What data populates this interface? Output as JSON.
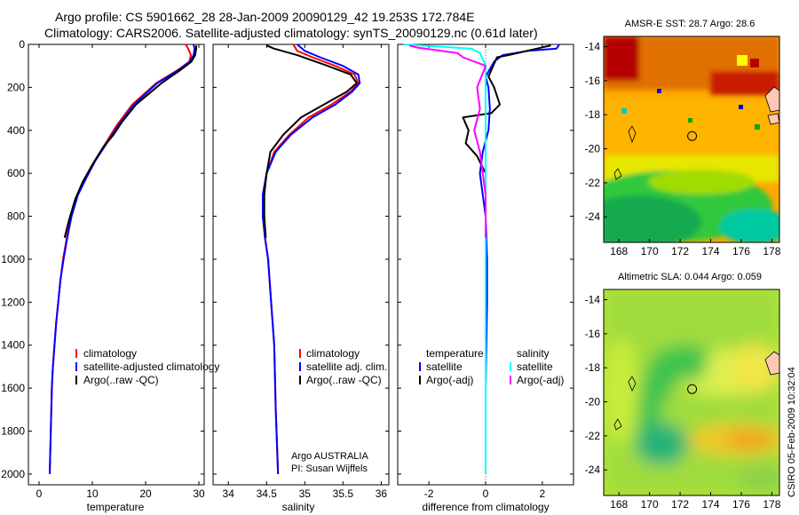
{
  "title": {
    "line1": "Argo profile: CS 5901662_28 28-Jan-2009 20090129_42 19.253S 172.784E",
    "line2": "Climatology: CARS2006. Satellite-adjusted climatology: synTS_20090129.nc (0.61d later)"
  },
  "stamp": "CSIRO 05-Feb-2009 10:32:04",
  "float_info": {
    "line1": "Argo AUSTRALIA",
    "line2": "PI: Susan Wijffels"
  },
  "colors": {
    "clim": "#ff0000",
    "sat": "#0000ff",
    "argo": "#000000",
    "sal_sat": "#00ffff",
    "sal_argo": "#ff00ff"
  },
  "chart_data": [
    {
      "type": "line",
      "name": "temperature-profile",
      "xlabel": "temperature",
      "xlim": [
        -2,
        31
      ],
      "ylim": [
        2050,
        0
      ],
      "xticks": [
        0,
        10,
        20,
        30
      ],
      "yticks": [
        0,
        200,
        400,
        600,
        800,
        1000,
        1200,
        1400,
        1600,
        1800,
        2000
      ],
      "legend": {
        "position": "bottom-right",
        "entries": [
          "climatology",
          "satellite-adjusted climatology",
          "Argo(..raw -QC)"
        ]
      },
      "series": [
        {
          "name": "climatology",
          "color": "#ff0000",
          "x": [
            27.5,
            28.0,
            28.5,
            28.2,
            26.0,
            22.0,
            17.5,
            14.5,
            12.5,
            10.5,
            8.8,
            7.2,
            6.0,
            5.2,
            4.5,
            4.0,
            3.6,
            3.2,
            2.9,
            2.6,
            2.4,
            2.2,
            2.0
          ],
          "y": [
            0,
            20,
            50,
            80,
            120,
            180,
            280,
            380,
            460,
            540,
            620,
            700,
            800,
            900,
            1000,
            1100,
            1200,
            1300,
            1400,
            1500,
            1600,
            1800,
            2000
          ]
        },
        {
          "name": "satellite-adjusted climatology",
          "color": "#0000ff",
          "x": [
            29.0,
            29.2,
            29.0,
            28.3,
            26.2,
            22.2,
            17.8,
            14.8,
            12.7,
            10.6,
            8.9,
            7.3,
            6.1,
            5.3,
            4.6,
            4.0,
            3.6,
            3.2,
            2.9,
            2.6,
            2.4,
            2.2,
            2.0
          ],
          "y": [
            0,
            20,
            50,
            80,
            120,
            180,
            280,
            380,
            460,
            540,
            620,
            700,
            800,
            900,
            1000,
            1100,
            1200,
            1300,
            1400,
            1500,
            1600,
            1800,
            2000
          ]
        },
        {
          "name": "Argo(..raw -QC)",
          "color": "#000000",
          "x": [
            29.5,
            29.5,
            29.3,
            28.6,
            26.5,
            23.0,
            18.2,
            15.6,
            14.0,
            12.0,
            10.0,
            8.2,
            6.8,
            5.6,
            4.8
          ],
          "y": [
            5,
            20,
            50,
            80,
            120,
            180,
            280,
            360,
            420,
            480,
            560,
            640,
            720,
            820,
            900
          ]
        }
      ]
    },
    {
      "type": "line",
      "name": "salinity-profile",
      "xlabel": "salinity",
      "xlim": [
        33.8,
        36.1
      ],
      "ylim": [
        2050,
        0
      ],
      "xticks": [
        34,
        34.5,
        35,
        35.5,
        36
      ],
      "legend": {
        "position": "bottom-right",
        "entries": [
          "climatology",
          "satellite adj. clim.",
          "Argo(..raw -QC)"
        ]
      },
      "series": [
        {
          "name": "climatology",
          "color": "#ff0000",
          "x": [
            34.85,
            34.9,
            35.1,
            35.4,
            35.65,
            35.7,
            35.6,
            35.35,
            35.05,
            34.8,
            34.6,
            34.5,
            34.45,
            34.45,
            34.48,
            34.52,
            34.56,
            34.6,
            34.62,
            34.65
          ],
          "y": [
            0,
            30,
            60,
            100,
            140,
            180,
            220,
            280,
            340,
            420,
            500,
            600,
            700,
            800,
            900,
            1000,
            1200,
            1400,
            1700,
            2000
          ]
        },
        {
          "name": "satellite adj. clim.",
          "color": "#0000ff",
          "x": [
            34.9,
            35.0,
            35.2,
            35.5,
            35.7,
            35.72,
            35.62,
            35.4,
            35.1,
            34.82,
            34.62,
            34.5,
            34.45,
            34.45,
            34.48,
            34.52,
            34.56,
            34.6,
            34.62,
            34.65
          ],
          "y": [
            0,
            30,
            60,
            100,
            140,
            180,
            220,
            280,
            340,
            420,
            500,
            600,
            700,
            800,
            900,
            1000,
            1200,
            1400,
            1700,
            2000
          ]
        },
        {
          "name": "Argo(..raw -QC)",
          "color": "#000000",
          "x": [
            34.5,
            34.6,
            34.9,
            35.3,
            35.6,
            35.68,
            35.55,
            35.25,
            34.95,
            34.72,
            34.55,
            34.5,
            34.47,
            34.47,
            34.49
          ],
          "y": [
            5,
            20,
            50,
            100,
            140,
            180,
            220,
            280,
            340,
            420,
            500,
            600,
            700,
            800,
            900
          ]
        }
      ]
    },
    {
      "type": "line",
      "name": "difference-profile",
      "xlabel": "difference from climatology",
      "xlim": [
        -3.1,
        3.1
      ],
      "ylim": [
        2050,
        0
      ],
      "xticks": [
        -2,
        0,
        2
      ],
      "legend": {
        "position": "bottom",
        "entries": [
          "temperature",
          "satellite",
          "Argo(-adj)",
          "salinity",
          "satellite",
          "Argo(-adj)"
        ]
      },
      "series": [
        {
          "name": "temperature satellite",
          "color": "#0000ff",
          "x": [
            2.6,
            2.5,
            1.5,
            0.6,
            0.3,
            0.0,
            0.1,
            0.15,
            0.1,
            -0.1,
            -0.2,
            -0.1,
            0.0,
            0.05,
            0.05,
            0.0,
            0.0
          ],
          "y": [
            0,
            20,
            30,
            50,
            80,
            150,
            200,
            300,
            400,
            500,
            600,
            700,
            800,
            1000,
            1200,
            1600,
            2000
          ]
        },
        {
          "name": "temperature Argo(-adj)",
          "color": "#000000",
          "x": [
            2.3,
            1.8,
            0.8,
            0.4,
            0.1,
            0.3,
            0.5,
            0.2,
            -0.8,
            -0.6,
            -0.7,
            -0.3,
            0.0,
            0.0
          ],
          "y": [
            5,
            20,
            50,
            60,
            150,
            200,
            280,
            320,
            340,
            400,
            460,
            520,
            600,
            900
          ]
        },
        {
          "name": "salinity satellite",
          "color": "#00ffff",
          "x": [
            -2.9,
            -0.5,
            -0.2,
            0.0,
            0.0,
            0.0,
            0.0,
            0.0,
            0.0,
            0.0
          ],
          "y": [
            0,
            20,
            40,
            100,
            300,
            600,
            900,
            1200,
            1600,
            2000
          ]
        },
        {
          "name": "salinity Argo(-adj)",
          "color": "#ff00ff",
          "x": [
            -2.7,
            -2.4,
            -1.0,
            -0.8,
            0.0,
            -0.3,
            -0.2,
            -0.4,
            -0.2,
            0.0,
            0.0
          ],
          "y": [
            5,
            15,
            40,
            60,
            100,
            200,
            300,
            400,
            500,
            700,
            900
          ]
        }
      ]
    },
    {
      "type": "heatmap",
      "name": "sst-map",
      "title": "AMSR-E SST: 28.7 Argo: 28.6",
      "xticks": [
        168,
        170,
        172,
        174,
        176,
        178
      ],
      "yticks": [
        -14,
        -16,
        -18,
        -20,
        -22,
        -24
      ],
      "xlim": [
        167,
        178.5
      ],
      "ylim": [
        -25.5,
        -13.4
      ],
      "marker": {
        "lon": 172.784,
        "lat": -19.253
      }
    },
    {
      "type": "heatmap",
      "name": "sla-map",
      "title": "Altimetric SLA: 0.044 Argo: 0.059",
      "xticks": [
        168,
        170,
        172,
        174,
        176,
        178
      ],
      "yticks": [
        -14,
        -16,
        -18,
        -20,
        -22,
        -24
      ],
      "xlim": [
        167,
        178.5
      ],
      "ylim": [
        -25.5,
        -13.4
      ],
      "marker": {
        "lon": 172.784,
        "lat": -19.253
      }
    }
  ]
}
